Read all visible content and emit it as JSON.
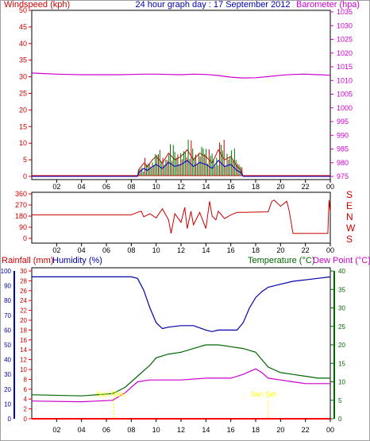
{
  "header": {
    "left_title": "Windspeed (kph)",
    "center_title": "24 hour graph day : 17 September 2012",
    "right_title": "Barometer (hpa)"
  },
  "colors": {
    "border": "#a0a0a0",
    "axis": "#000000",
    "wind": "#cc0000",
    "gust_green": "#007700",
    "wind_blue": "#0000cc",
    "baro": "#cc00cc",
    "dir": "#cc0000",
    "rain": "#ff0000",
    "humidity": "#0000aa",
    "temp": "#006600",
    "dew": "#cc00cc",
    "sun": "#ffff00"
  },
  "chart_data": [
    {
      "type": "line",
      "name": "wind_and_barometer",
      "x_ticks": [
        "02",
        "04",
        "06",
        "08",
        "10",
        "12",
        "14",
        "16",
        "18",
        "20",
        "22",
        "00"
      ],
      "left_axis": {
        "label": "Windspeed (kph)",
        "ticks": [
          0,
          5,
          10,
          15,
          20,
          25,
          30,
          35,
          40,
          45,
          50
        ],
        "ylim": [
          0,
          50
        ]
      },
      "right_axis": {
        "label": "Barometer (hpa)",
        "ticks": [
          975,
          980,
          985,
          990,
          995,
          1000,
          1005,
          1010,
          1015,
          1020,
          1025,
          1030,
          1035
        ],
        "ylim": [
          975,
          1035
        ]
      },
      "series": [
        {
          "axis": "right",
          "x": [
            0,
            1,
            2,
            3,
            4,
            5,
            6,
            7,
            8,
            9,
            10,
            11,
            12,
            13,
            14,
            15,
            16,
            17,
            18,
            19,
            20,
            21,
            22,
            23,
            24
          ],
          "values": [
            1012.7,
            1012.5,
            1012.3,
            1012.2,
            1012.1,
            1012.1,
            1012.1,
            1012.1,
            1012.2,
            1012.3,
            1012.3,
            1012.2,
            1012.1,
            1012.3,
            1012.2,
            1011.8,
            1011.2,
            1010.9,
            1011.0,
            1011.4,
            1011.9,
            1012.2,
            1012.3,
            1012.1,
            1011.9
          ]
        },
        {
          "axis": "left",
          "note_series": "windspeed",
          "x": [
            0,
            8.5,
            8.6,
            9.0,
            9.3,
            9.7,
            10.0,
            10.5,
            11.0,
            11.5,
            12.0,
            12.5,
            13.0,
            13.5,
            14.0,
            14.5,
            15.0,
            15.5,
            16.0,
            16.5,
            16.8,
            17.0,
            24
          ],
          "values": [
            0,
            0,
            2,
            4,
            3,
            5,
            6,
            4,
            7,
            5,
            6,
            8,
            5,
            7,
            6,
            4,
            8,
            5,
            6,
            3,
            2,
            0,
            0
          ]
        }
      ]
    },
    {
      "type": "line",
      "name": "wind_direction",
      "x_ticks": [
        "02",
        "04",
        "06",
        "08",
        "10",
        "12",
        "14",
        "16",
        "18",
        "20",
        "22",
        "00"
      ],
      "left_axis": {
        "ticks": [
          0,
          90,
          180,
          270,
          360
        ],
        "ylim": [
          0,
          360
        ]
      },
      "right_labels": [
        "S",
        "E",
        "N",
        "W",
        "S"
      ],
      "series": [
        {
          "x": [
            0,
            8.0,
            8.5,
            8.8,
            9.0,
            9.5,
            10.0,
            10.5,
            11.0,
            11.2,
            11.5,
            12.0,
            12.3,
            12.5,
            12.8,
            13.0,
            13.5,
            14.0,
            14.3,
            14.5,
            14.8,
            15.0,
            15.5,
            16.0,
            16.5,
            17.0,
            19.0,
            19.3,
            19.5,
            20.0,
            20.5,
            20.7,
            21.0,
            23.8,
            23.9,
            24
          ],
          "values": [
            190,
            190,
            210,
            220,
            175,
            200,
            165,
            240,
            150,
            40,
            200,
            130,
            250,
            80,
            220,
            110,
            210,
            80,
            300,
            180,
            150,
            220,
            160,
            190,
            210,
            210,
            215,
            300,
            310,
            260,
            300,
            220,
            40,
            40,
            310,
            210
          ]
        }
      ]
    },
    {
      "type": "line",
      "name": "rain_humidity_temp_dew",
      "x_ticks": [
        "02",
        "04",
        "06",
        "08",
        "10",
        "12",
        "14",
        "16",
        "18",
        "20",
        "22",
        "00"
      ],
      "left_axis_rain": {
        "label": "Rainfall (mm)",
        "ticks": [
          0,
          2,
          4,
          6,
          8,
          10,
          12,
          14,
          16,
          18,
          20,
          22,
          24,
          26,
          28,
          30
        ],
        "ylim": [
          0,
          30
        ]
      },
      "left_axis_humidity": {
        "label": "Humidity (%)",
        "ticks": [
          0,
          10,
          20,
          30,
          40,
          50,
          60,
          70,
          80,
          90,
          100
        ],
        "ylim": [
          0,
          100
        ]
      },
      "right_axis": {
        "label": "Temperature (°C)",
        "ticks": [
          0,
          5,
          10,
          15,
          20,
          25,
          30,
          35,
          40
        ],
        "ylim": [
          0,
          40
        ]
      },
      "right_label_2": "Dew Point (°C)",
      "annotations": [
        "Sun Rise",
        "Sun Set"
      ],
      "series": [
        {
          "name": "Humidity (%)",
          "axis": "humidity",
          "x": [
            0,
            8.0,
            8.5,
            9.0,
            9.5,
            10.0,
            10.5,
            11.0,
            12.0,
            13.0,
            14.0,
            14.5,
            15.0,
            16.0,
            16.5,
            17.0,
            17.5,
            18.0,
            18.5,
            19.0,
            20.0,
            21.0,
            22.0,
            23.0,
            24.0
          ],
          "values": [
            96,
            96,
            95,
            87,
            75,
            65,
            61,
            62,
            63,
            63,
            60,
            59,
            60,
            60,
            60,
            65,
            75,
            82,
            86,
            89,
            91,
            93,
            94,
            95,
            96
          ]
        },
        {
          "name": "Temperature (°C)",
          "axis": "temp",
          "x": [
            0,
            4.0,
            6.5,
            7.5,
            8.5,
            9.5,
            10.0,
            11.0,
            12.0,
            13.0,
            14.0,
            15.0,
            16.0,
            17.0,
            18.0,
            18.5,
            19.0,
            20.0,
            21.0,
            22.0,
            23.0,
            24.0
          ],
          "values": [
            6.5,
            6.2,
            6.8,
            8.5,
            11.5,
            14.5,
            16.5,
            17.5,
            18.0,
            19.0,
            20.0,
            20.0,
            19.5,
            19.0,
            18.0,
            16.0,
            14.0,
            12.5,
            12.0,
            11.5,
            11.0,
            11.0
          ]
        },
        {
          "name": "Dew Point (°C)",
          "axis": "temp",
          "x": [
            0,
            4.0,
            6.5,
            7.5,
            8.5,
            9.5,
            10.0,
            12.0,
            14.0,
            16.0,
            17.0,
            18.0,
            18.5,
            19.0,
            20.0,
            21.0,
            22.0,
            23.0,
            24.0
          ],
          "values": [
            4.8,
            4.6,
            5.0,
            7.0,
            10.0,
            10.5,
            10.5,
            10.5,
            11.0,
            11.0,
            12.0,
            13.5,
            12.5,
            11.0,
            10.5,
            10.0,
            9.5,
            9.5,
            9.5
          ]
        },
        {
          "name": "Rainfall (mm)",
          "axis": "rain",
          "x": [
            0,
            24
          ],
          "values": [
            0,
            0
          ]
        }
      ]
    }
  ]
}
